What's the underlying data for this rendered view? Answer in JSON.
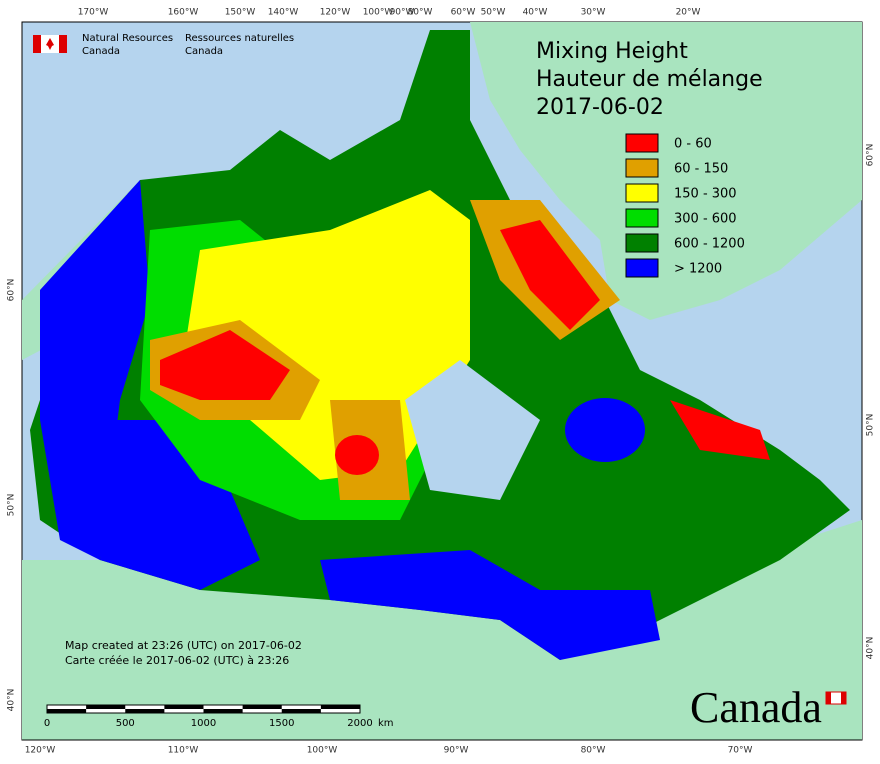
{
  "agency": {
    "en": [
      "Natural Resources",
      "Canada"
    ],
    "fr": [
      "Ressources naturelles",
      "Canada"
    ]
  },
  "title": [
    "Mixing Height",
    "Hauteur de mélange",
    "2017-06-02"
  ],
  "legend": [
    {
      "label": "0 - 60",
      "color": "#ff0000"
    },
    {
      "label": "60 - 150",
      "color": "#e0a000"
    },
    {
      "label": "150 - 300",
      "color": "#ffff00"
    },
    {
      "label": "300 - 600",
      "color": "#00dd00"
    },
    {
      "label": "600 - 1200",
      "color": "#008000"
    },
    {
      "label": "> 1200",
      "color": "#0000ff"
    }
  ],
  "top_labels": [
    "170°W",
    "160°W",
    "150°W",
    "140°W",
    "120°W",
    "100°W",
    "90°W",
    "80°W",
    "60°W",
    "50°W",
    "40°W",
    "30°W",
    "20°W"
  ],
  "bottom_labels": [
    "120°W",
    "110°W",
    "100°W",
    "90°W",
    "80°W",
    "70°W"
  ],
  "left_labels": [
    "60°N",
    "50°N",
    "40°N"
  ],
  "right_labels": [
    "60°N",
    "50°N",
    "40°N"
  ],
  "notes": [
    "Map created at 23:26 (UTC) on 2017-06-02",
    "Carte créée le 2017-06-02 (UTC) à 23:26"
  ],
  "scale": {
    "ticks": [
      "0",
      "500",
      "1000",
      "1500",
      "2000"
    ],
    "unit": "km"
  },
  "wordmark": "Canada"
}
